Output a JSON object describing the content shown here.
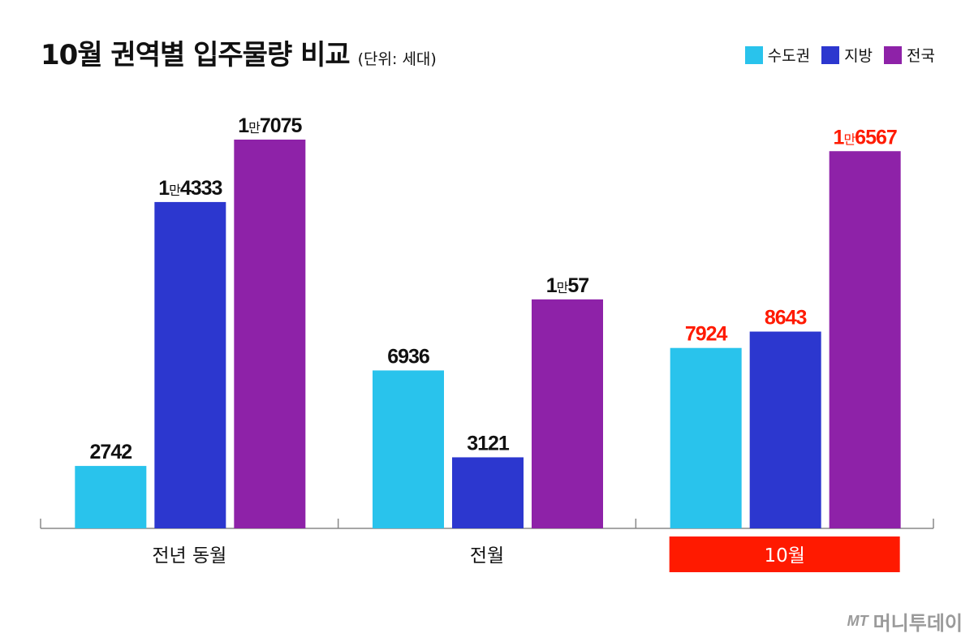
{
  "header": {
    "title": "10월 권역별 입주물량 비교",
    "unit": "(단위: 세대)"
  },
  "colors": {
    "capital": "#29c3ec",
    "regional": "#2c37cf",
    "national": "#8e22a8",
    "highlight": "#ff1a00",
    "axis": "#888888",
    "text": "#111111"
  },
  "chart_data": {
    "type": "bar",
    "title": "10월 권역별 입주물량 비교",
    "unit": "(단위: 세대)",
    "categories": [
      "전년 동월",
      "전월",
      "10월"
    ],
    "highlight_category": "10월",
    "legend_position": "top-right",
    "grid": false,
    "ylim": [
      0,
      18000
    ],
    "series": [
      {
        "name": "수도권",
        "color": "#29c3ec",
        "values": [
          2742,
          6936,
          7924
        ],
        "labels": [
          "2742",
          "6936",
          "7924"
        ]
      },
      {
        "name": "지방",
        "color": "#2c37cf",
        "values": [
          14333,
          3121,
          8643
        ],
        "labels": [
          "1만4333",
          "3121",
          "8643"
        ]
      },
      {
        "name": "전국",
        "color": "#8e22a8",
        "values": [
          17075,
          10057,
          16567
        ],
        "labels": [
          "1만7075",
          "1만57",
          "1만6567"
        ]
      }
    ]
  },
  "brand": {
    "mark": "MT",
    "name": "머니투데이"
  }
}
